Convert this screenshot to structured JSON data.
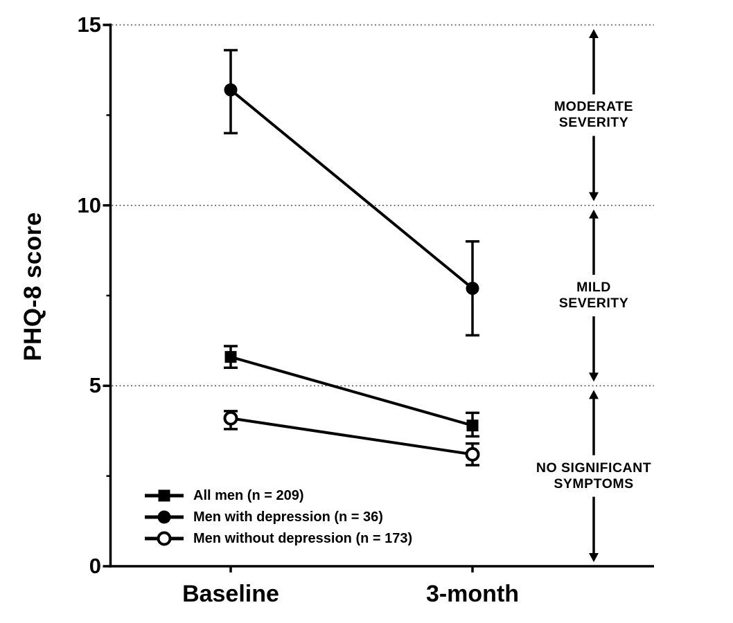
{
  "figure": {
    "background": "#ffffff",
    "ink": "#000000",
    "grid_color": "#555555"
  },
  "chart_data": {
    "type": "line",
    "title": "",
    "xlabel": "",
    "ylabel": "PHQ-8 score",
    "x_categories": [
      "Baseline",
      "3-month"
    ],
    "ylim": [
      0,
      15
    ],
    "y_major_ticks": [
      0,
      5,
      10,
      15
    ],
    "y_minor_ticks": [
      2.5,
      7.5,
      12.5
    ],
    "gridlines_at": [
      5,
      10,
      15
    ],
    "grid_style": "dotted",
    "legend_position": "lower-left",
    "error_bars": "yes",
    "series": [
      {
        "name": "All men (n = 209)",
        "marker": "filled-square",
        "values": [
          5.8,
          3.9
        ],
        "ci_low": [
          5.5,
          3.6
        ],
        "ci_high": [
          6.1,
          4.25
        ]
      },
      {
        "name": "Men with depression (n = 36)",
        "marker": "filled-circle",
        "values": [
          13.2,
          7.7
        ],
        "ci_low": [
          12.0,
          6.4
        ],
        "ci_high": [
          14.3,
          9.0
        ]
      },
      {
        "name": "Men without depression (n = 173)",
        "marker": "open-circle",
        "values": [
          4.1,
          3.1
        ],
        "ci_low": [
          3.8,
          2.8
        ],
        "ci_high": [
          4.3,
          3.4
        ]
      }
    ],
    "annotations": [
      {
        "label_lines": [
          "MODERATE",
          "SEVERITY"
        ],
        "band": [
          10,
          15
        ]
      },
      {
        "label_lines": [
          "MILD",
          "SEVERITY"
        ],
        "band": [
          5,
          10
        ]
      },
      {
        "label_lines": [
          "NO SIGNIFICANT",
          "SYMPTOMS"
        ],
        "band": [
          0,
          5
        ]
      }
    ]
  },
  "axis": {
    "y_tick_labels": [
      "15",
      "10",
      "5",
      "0"
    ],
    "x_tick_labels": [
      "Baseline",
      "3-month"
    ]
  },
  "legend": {
    "items": [
      {
        "label": "All men (n = 209)",
        "marker": "filled-square"
      },
      {
        "label": "Men with depression (n = 36)",
        "marker": "filled-circle"
      },
      {
        "label": "Men without depression (n = 173)",
        "marker": "open-circle"
      }
    ]
  }
}
